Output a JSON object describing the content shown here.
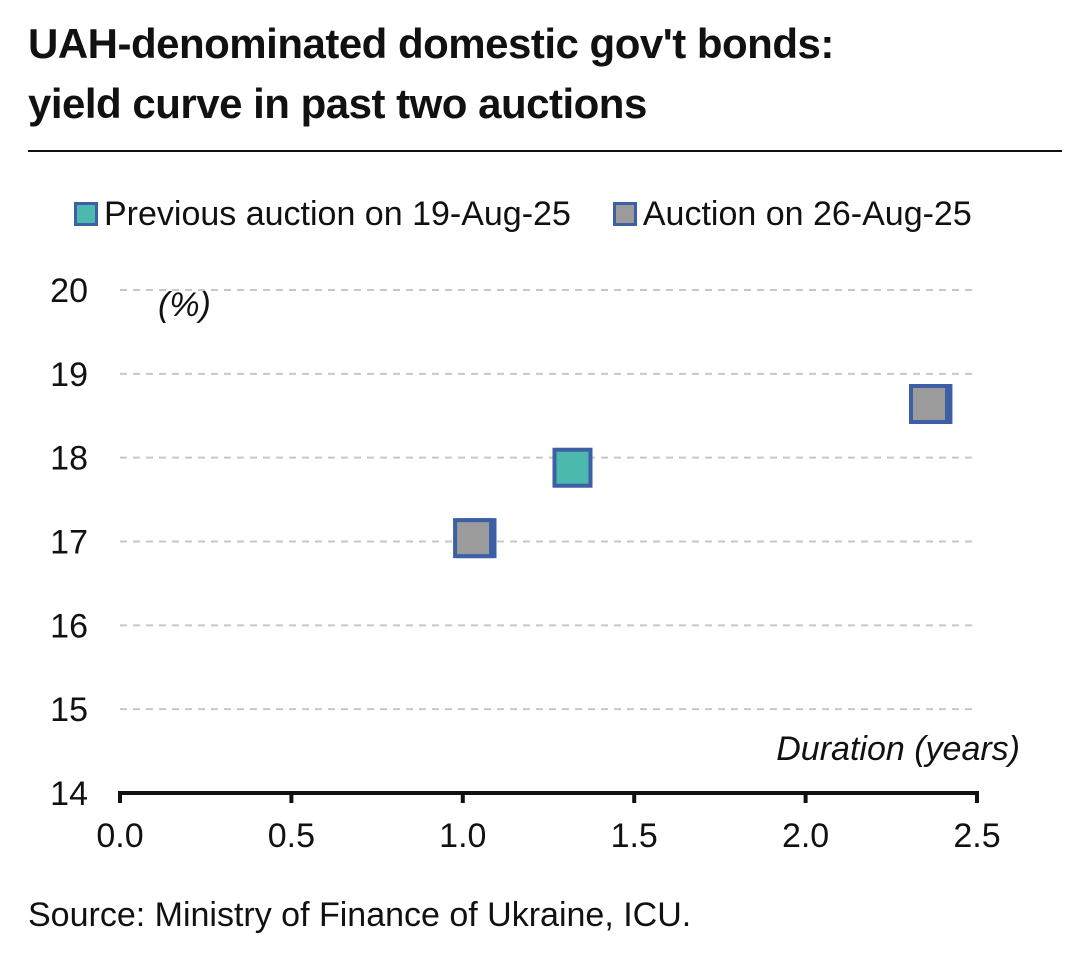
{
  "title_line1": "UAH-denominated domestic gov't bonds:",
  "title_line2": "yield curve in past two auctions",
  "source": "Source: Ministry of Finance of Ukraine, ICU.",
  "chart_data": {
    "type": "scatter",
    "ylabel": "(%)",
    "xlabel": "Duration (years)",
    "xlim": [
      0,
      2.5
    ],
    "ylim": [
      14,
      20
    ],
    "xticks": [
      "0.0",
      "0.5",
      "1.0",
      "1.5",
      "2.0",
      "2.5"
    ],
    "yticks": [
      "14",
      "15",
      "16",
      "17",
      "18",
      "19",
      "20"
    ],
    "grid": "horizontal dashed",
    "legend_position": "top-left",
    "series": [
      {
        "name": "Previous auction on 19-Aug-25",
        "color": "#4db8ae",
        "border": "#3d5fa6",
        "points": [
          {
            "x": 1.04,
            "y": 17.04
          },
          {
            "x": 1.32,
            "y": 17.88
          },
          {
            "x": 2.37,
            "y": 18.64
          }
        ]
      },
      {
        "name": "Auction on 26-Aug-25",
        "color": "#9b9b9b",
        "border": "#3d5fa6",
        "points": [
          {
            "x": 1.03,
            "y": 17.04
          },
          {
            "x": 2.36,
            "y": 18.64
          }
        ]
      }
    ]
  }
}
